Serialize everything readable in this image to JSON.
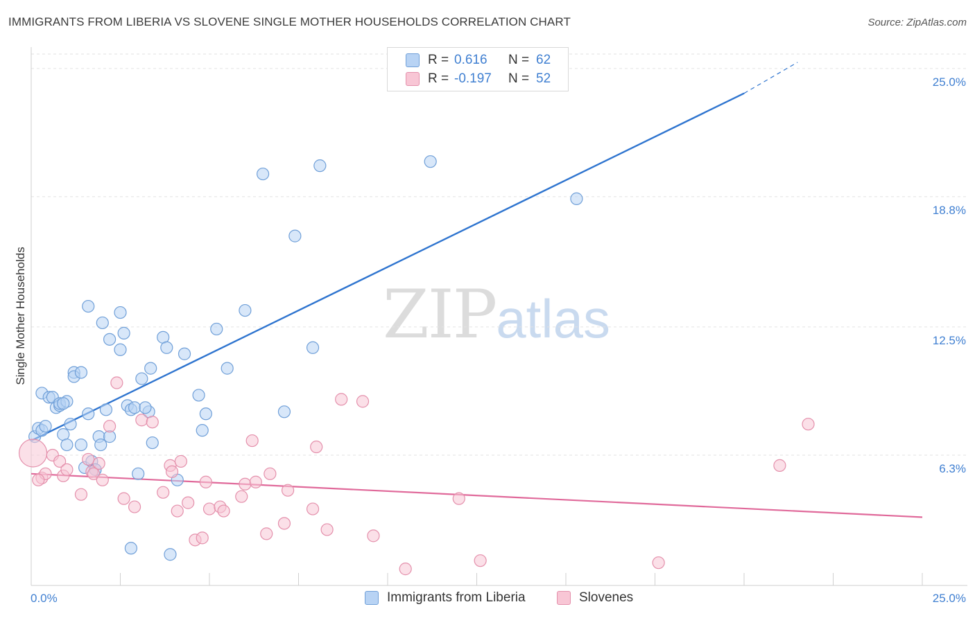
{
  "header": {
    "title": "IMMIGRANTS FROM LIBERIA VS SLOVENE SINGLE MOTHER HOUSEHOLDS CORRELATION CHART",
    "source": "Source: ZipAtlas.com"
  },
  "watermark": {
    "zip": "ZIP",
    "atlas": "atlas"
  },
  "legend": {
    "rows": [
      {
        "r_label": "R =",
        "r_value": "0.616",
        "n_label": "N =",
        "n_value": "62"
      },
      {
        "r_label": "R =",
        "r_value": "-0.197",
        "n_label": "N =",
        "n_value": "52"
      }
    ]
  },
  "bottom_legend": {
    "items": [
      "Immigrants from Liberia",
      "Slovenes"
    ]
  },
  "colors": {
    "blue_fill": "#b8d3f4",
    "blue_stroke": "#6f9fd8",
    "blue_line": "#2e74cf",
    "pink_fill": "#f8c6d5",
    "pink_stroke": "#e48fab",
    "pink_line": "#e0699a",
    "tick_label": "#3f7fd1",
    "grid": "#e2e2e2"
  },
  "chart_data": {
    "type": "scatter",
    "title": "IMMIGRANTS FROM LIBERIA VS SLOVENE SINGLE MOTHER HOUSEHOLDS CORRELATION CHART",
    "xlabel": "",
    "ylabel": "Single Mother Households",
    "xlim": [
      0,
      25
    ],
    "ylim": [
      0,
      25.9
    ],
    "x_tick_labels": [
      "0.0%",
      "25.0%"
    ],
    "y_ticks": [
      6.3,
      12.5,
      18.8,
      25.0
    ],
    "y_tick_labels": [
      "6.3%",
      "12.5%",
      "18.8%",
      "25.0%"
    ],
    "grid": true,
    "legend_position": "top-center",
    "series": [
      {
        "name": "Immigrants from Liberia",
        "color": "#6f9fd8",
        "trend": {
          "x": [
            0,
            20
          ],
          "y": [
            7.0,
            23.8
          ],
          "dashed_to": [
            21.5,
            25.3
          ]
        },
        "points": [
          [
            0.1,
            7.2
          ],
          [
            0.2,
            7.6
          ],
          [
            0.3,
            7.5
          ],
          [
            0.4,
            7.7
          ],
          [
            0.3,
            9.3
          ],
          [
            0.5,
            9.1
          ],
          [
            0.6,
            9.1
          ],
          [
            0.7,
            8.6
          ],
          [
            0.8,
            8.7
          ],
          [
            0.8,
            8.8
          ],
          [
            1.0,
            8.9
          ],
          [
            0.9,
            7.3
          ],
          [
            1.0,
            6.8
          ],
          [
            1.1,
            7.8
          ],
          [
            1.2,
            10.3
          ],
          [
            1.2,
            10.1
          ],
          [
            1.4,
            10.3
          ],
          [
            1.4,
            6.8
          ],
          [
            1.5,
            5.7
          ],
          [
            1.6,
            13.5
          ],
          [
            1.6,
            8.3
          ],
          [
            1.7,
            6.0
          ],
          [
            1.8,
            5.6
          ],
          [
            1.9,
            7.2
          ],
          [
            1.95,
            6.8
          ],
          [
            2.0,
            12.7
          ],
          [
            2.1,
            8.5
          ],
          [
            2.2,
            11.9
          ],
          [
            2.2,
            7.2
          ],
          [
            2.5,
            11.4
          ],
          [
            2.5,
            13.2
          ],
          [
            2.6,
            12.2
          ],
          [
            2.7,
            8.7
          ],
          [
            2.8,
            8.5
          ],
          [
            2.9,
            8.6
          ],
          [
            3.0,
            5.4
          ],
          [
            3.1,
            10.0
          ],
          [
            3.3,
            8.4
          ],
          [
            3.35,
            10.5
          ],
          [
            3.4,
            6.9
          ],
          [
            3.7,
            12.0
          ],
          [
            3.8,
            11.5
          ],
          [
            4.1,
            5.1
          ],
          [
            4.3,
            11.2
          ],
          [
            4.7,
            9.2
          ],
          [
            4.8,
            7.5
          ],
          [
            4.9,
            8.3
          ],
          [
            5.2,
            12.4
          ],
          [
            5.5,
            10.5
          ],
          [
            6.0,
            13.3
          ],
          [
            6.5,
            19.9
          ],
          [
            7.1,
            8.4
          ],
          [
            7.4,
            16.9
          ],
          [
            7.9,
            11.5
          ],
          [
            8.1,
            20.3
          ],
          [
            11.2,
            20.5
          ],
          [
            15.3,
            18.7
          ],
          [
            2.8,
            1.8
          ],
          [
            3.9,
            1.5
          ],
          [
            1.8,
            5.6
          ],
          [
            0.9,
            8.8
          ],
          [
            3.2,
            8.6
          ]
        ]
      },
      {
        "name": "Slovenes",
        "color": "#e48fab",
        "trend": {
          "x": [
            0,
            25
          ],
          "y": [
            5.4,
            3.3
          ]
        },
        "points": [
          [
            0.05,
            6.4
          ],
          [
            0.3,
            5.2
          ],
          [
            0.4,
            5.4
          ],
          [
            0.6,
            6.3
          ],
          [
            0.8,
            6.0
          ],
          [
            0.9,
            5.3
          ],
          [
            1.0,
            5.6
          ],
          [
            1.4,
            4.4
          ],
          [
            1.6,
            6.1
          ],
          [
            1.7,
            5.5
          ],
          [
            1.75,
            5.4
          ],
          [
            1.9,
            5.9
          ],
          [
            2.0,
            5.1
          ],
          [
            2.2,
            7.7
          ],
          [
            2.4,
            9.8
          ],
          [
            2.6,
            4.2
          ],
          [
            2.9,
            3.8
          ],
          [
            3.1,
            8.0
          ],
          [
            3.4,
            7.9
          ],
          [
            3.7,
            4.5
          ],
          [
            3.9,
            5.8
          ],
          [
            3.95,
            5.5
          ],
          [
            4.1,
            3.6
          ],
          [
            4.2,
            6.0
          ],
          [
            4.4,
            4.0
          ],
          [
            4.6,
            2.2
          ],
          [
            4.8,
            2.3
          ],
          [
            4.9,
            5.0
          ],
          [
            5.0,
            3.7
          ],
          [
            5.3,
            3.8
          ],
          [
            5.4,
            3.6
          ],
          [
            5.9,
            4.3
          ],
          [
            6.0,
            4.9
          ],
          [
            6.2,
            7.0
          ],
          [
            6.3,
            5.0
          ],
          [
            6.6,
            2.5
          ],
          [
            6.7,
            5.4
          ],
          [
            7.1,
            3.0
          ],
          [
            7.2,
            4.6
          ],
          [
            7.9,
            3.7
          ],
          [
            8.0,
            6.7
          ],
          [
            8.3,
            2.7
          ],
          [
            8.7,
            9.0
          ],
          [
            9.3,
            8.9
          ],
          [
            9.6,
            2.4
          ],
          [
            10.5,
            0.8
          ],
          [
            12.0,
            4.2
          ],
          [
            12.6,
            1.2
          ],
          [
            17.6,
            1.1
          ],
          [
            21.0,
            5.8
          ],
          [
            21.8,
            7.8
          ],
          [
            0.2,
            5.1
          ]
        ]
      }
    ]
  }
}
